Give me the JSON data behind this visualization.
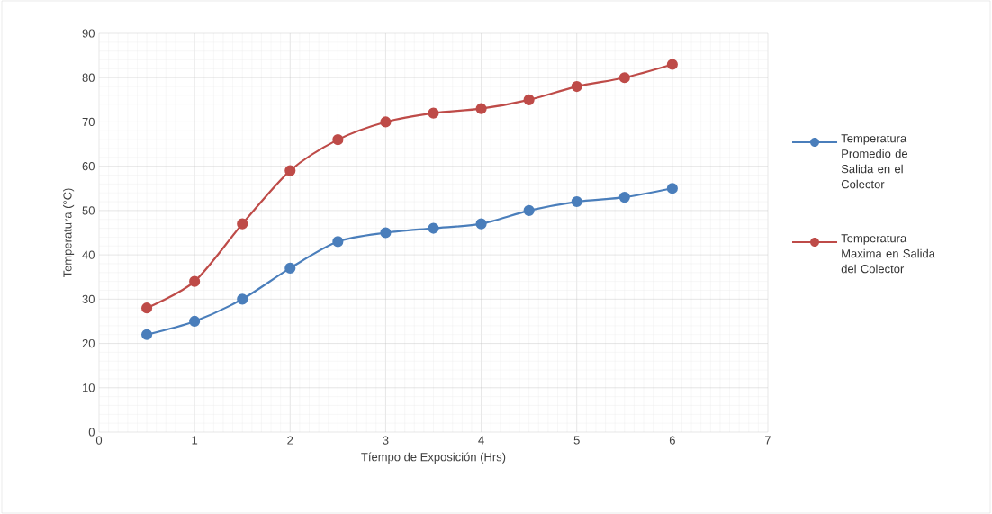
{
  "chart_data": {
    "type": "line",
    "xlabel": "Tíempo de Exposición (Hrs)",
    "ylabel": "Temperatura (°C)",
    "x": [
      0.5,
      1,
      1.5,
      2,
      2.5,
      3,
      3.5,
      4,
      4.5,
      5,
      5.5,
      6
    ],
    "series": [
      {
        "name": "Temperatura Promedio de Salida en el Colector",
        "color": "#4a7ebb",
        "values": [
          22,
          25,
          30,
          37,
          43,
          45,
          46,
          47,
          50,
          52,
          53,
          55
        ]
      },
      {
        "name": "Temperatura Maxima en Salida del Colector",
        "color": "#be4b48",
        "values": [
          28,
          34,
          47,
          59,
          66,
          70,
          72,
          73,
          75,
          78,
          80,
          83
        ]
      }
    ],
    "xlim": [
      0,
      7
    ],
    "xticks": [
      0,
      1,
      2,
      3,
      4,
      5,
      6,
      7
    ],
    "ylim": [
      0,
      90
    ],
    "yticks": [
      0,
      10,
      20,
      30,
      40,
      50,
      60,
      70,
      80,
      90
    ],
    "grid": true,
    "legend": "right",
    "marker": "circle",
    "line_style": "solid"
  }
}
